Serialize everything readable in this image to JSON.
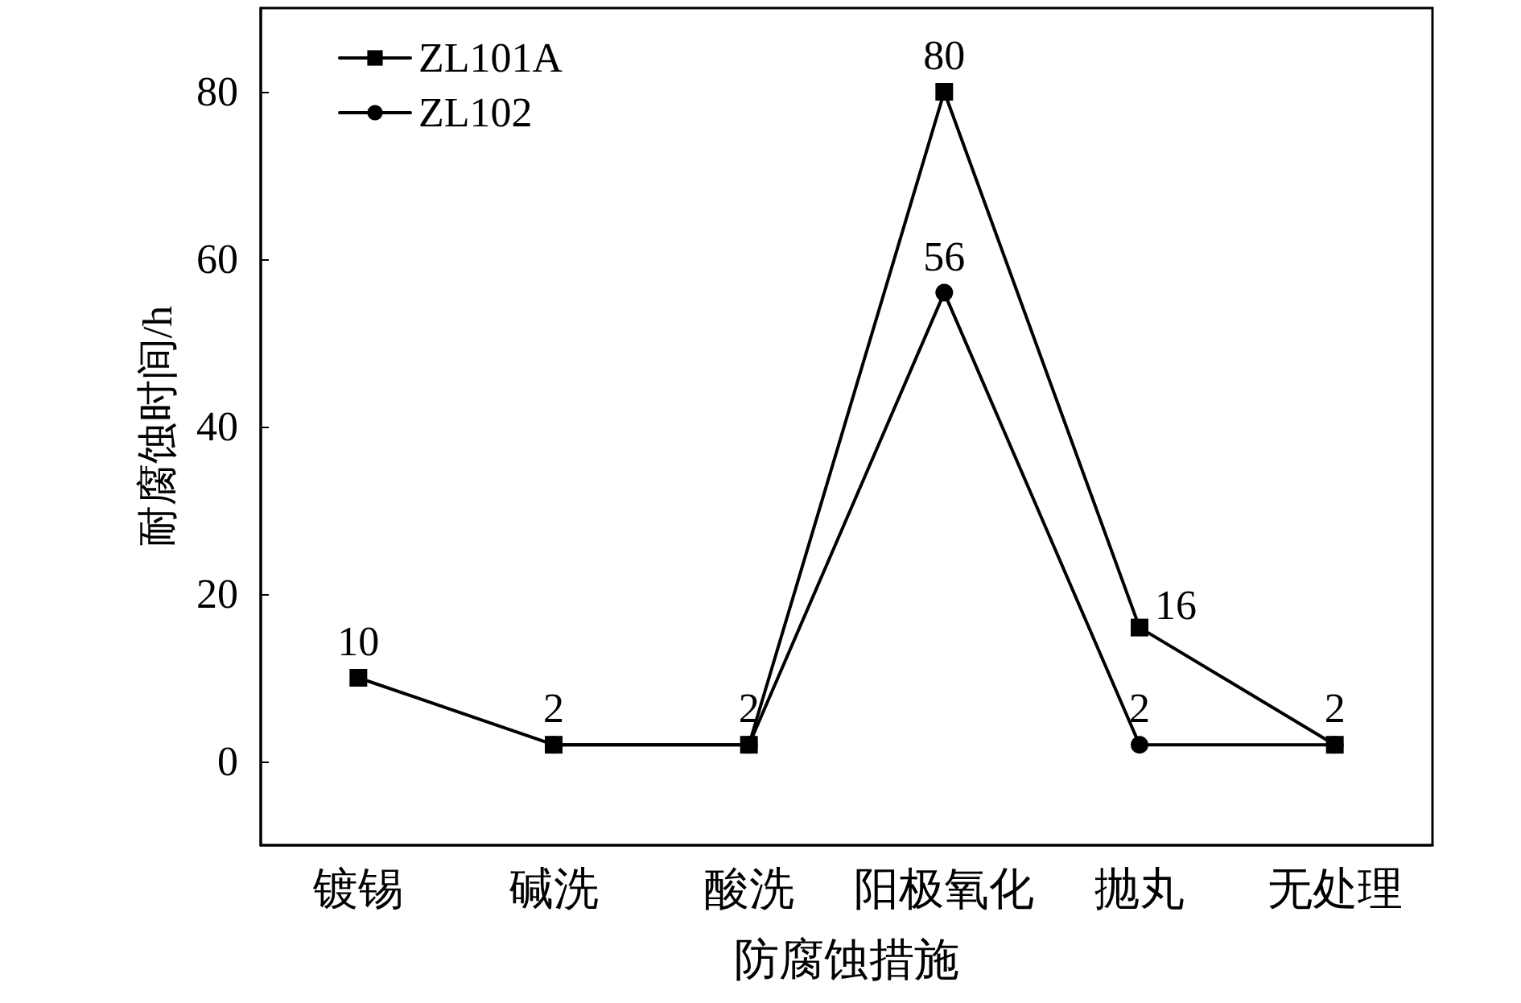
{
  "chart_data": {
    "type": "line",
    "xlabel": "防腐蚀措施",
    "ylabel": "耐腐蚀时间/h",
    "categories": [
      "镀锡",
      "碱洗",
      "酸洗",
      "阳极氧化",
      "抛丸",
      "无处理"
    ],
    "series": [
      {
        "name": "ZL101A",
        "color": "#000000",
        "marker": "square",
        "values": [
          10,
          2,
          2,
          80,
          16,
          2
        ],
        "value_labels": [
          "10",
          "2",
          "2",
          "80",
          "16",
          "2"
        ]
      },
      {
        "name": "ZL102",
        "color": "#000000",
        "marker": "circle",
        "values": [
          null,
          2,
          2,
          56,
          2,
          2
        ],
        "value_labels": [
          null,
          null,
          null,
          "56",
          "2",
          null
        ]
      }
    ],
    "ylim": [
      -10,
      90
    ],
    "yticks": [
      0,
      20,
      40,
      60,
      80
    ],
    "grid": false,
    "legend": "top left",
    "line_style": "solid"
  }
}
